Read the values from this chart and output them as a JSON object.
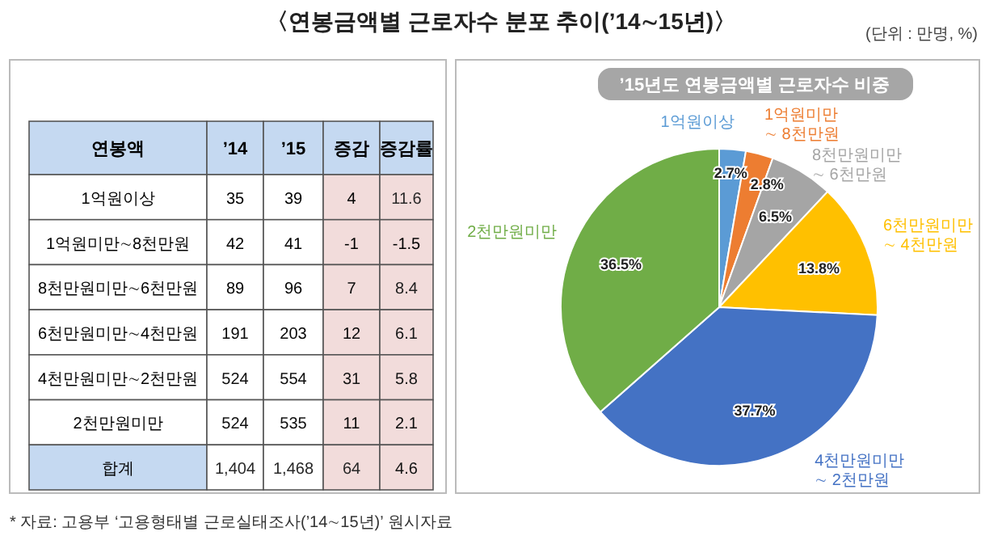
{
  "chart_data": [
    {
      "type": "heatmap",
      "title": "〈연봉금액별 근로자수 분포 추이(’14∼15년)〉",
      "ylabel": "연봉액",
      "annotations": [
        "* 자료: 고용부 ‘고용형태별 근로실태조사(’14∼15년)’ 원시자료"
      ],
      "categories": [
        "’14",
        "’15",
        "증감",
        "증감률"
      ],
      "y_categories": [
        "1억원이상",
        "1억원미만∼8천만원",
        "8천만원미만∼6천만원",
        "6천만원미만∼4천만원",
        "4천만원미만∼2천만원",
        "2천만원미만",
        "합계"
      ],
      "cells": [
        [
          35,
          39,
          4,
          11.6
        ],
        [
          42,
          41,
          -1,
          -1.5
        ],
        [
          89,
          96,
          7,
          8.4
        ],
        [
          191,
          203,
          12,
          6.1
        ],
        [
          524,
          554,
          31,
          5.8
        ],
        [
          524,
          535,
          11,
          2.1
        ],
        [
          1404,
          1468,
          64,
          4.6
        ]
      ],
      "cell_labels": [
        [
          "35",
          "39",
          "4",
          "11.6"
        ],
        [
          "42",
          "41",
          "-1",
          "-1.5"
        ],
        [
          "89",
          "96",
          "7",
          "8.4"
        ],
        [
          "191",
          "203",
          "12",
          "6.1"
        ],
        [
          "524",
          "554",
          "31",
          "5.8"
        ],
        [
          "524",
          "535",
          "11",
          "2.1"
        ],
        [
          "1,404",
          "1,468",
          "64",
          "4.6"
        ]
      ]
    },
    {
      "type": "pie",
      "title": "’15년도 연봉금액별 근로자수 비중",
      "subtitle": "(단위 : 만명, %)",
      "categories": [
        "1억원이상",
        "1억원미만 ∼ 8천만원",
        "8천만원미만 ∼ 6천만원",
        "6천만원미만 ∼ 4천만원",
        "4천만원미만 ∼ 2천만원",
        "2천만원미만"
      ],
      "values": [
        2.7,
        2.8,
        6.5,
        13.8,
        37.7,
        36.5
      ],
      "colors": [
        "#5b9bd5",
        "#ed7d31",
        "#a5a5a5",
        "#ffc000",
        "#4472c4",
        "#70ad47"
      ],
      "value_labels": [
        "2.7%",
        "2.8%",
        "6.5%",
        "13.8%",
        "37.7%",
        "36.5%"
      ]
    }
  ]
}
